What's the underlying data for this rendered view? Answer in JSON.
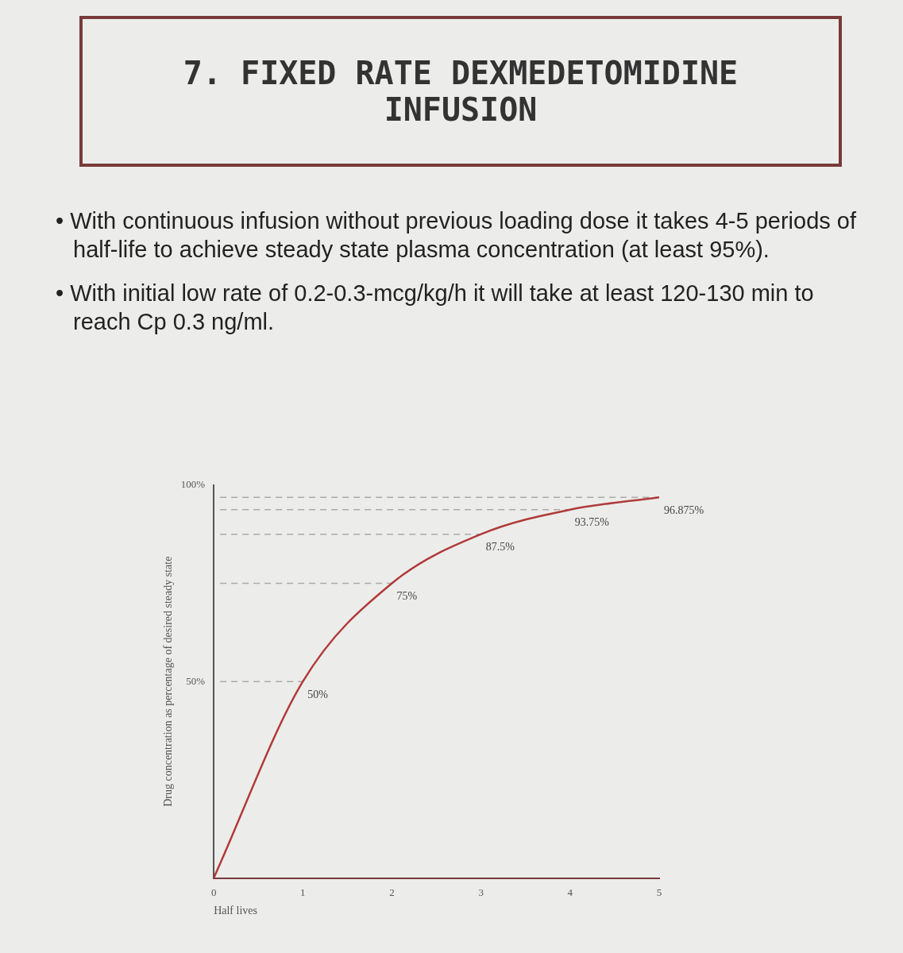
{
  "chart_data": {
    "type": "line",
    "title": "7. FIXED RATE DEXMEDETOMIDINE INFUSION",
    "annotations": [
      "• With continuous infusion without previous loading dose it takes 4-5 periods of half-life to achieve steady state plasma concentration (at least 95%).",
      "• With initial low rate of 0.2-0.3-mcg/kg/h it will take at least 120-130 min to reach Cp 0.3 ng/ml."
    ],
    "xlabel": "Half lives",
    "ylabel": "Drug concentration as percentage of desired steady state",
    "x": [
      0,
      1,
      2,
      3,
      4,
      5
    ],
    "series": [
      {
        "color": "#b03a3a",
        "values": [
          0,
          50,
          75,
          87.5,
          93.75,
          96.875
        ],
        "value_labels": [
          null,
          "50%",
          "75%",
          "87.5%",
          "93.75%",
          "96.875%"
        ]
      }
    ],
    "xlim": [
      0,
      5
    ],
    "xticks": [
      0,
      1,
      2,
      3,
      4,
      5
    ],
    "ylim": [
      0,
      100
    ],
    "yticks": [
      {
        "value": 50,
        "label": "50%"
      },
      {
        "value": 100,
        "label": "100%"
      }
    ],
    "ref_lines": [
      {
        "axis": "y",
        "value": 50,
        "line_style": "dashed",
        "color": "#aaaaaa"
      },
      {
        "axis": "y",
        "value": 75,
        "line_style": "dashed",
        "color": "#aaaaaa"
      },
      {
        "axis": "y",
        "value": 87.5,
        "line_style": "dashed",
        "color": "#aaaaaa"
      },
      {
        "axis": "y",
        "value": 93.75,
        "line_style": "dashed",
        "color": "#aaaaaa"
      },
      {
        "axis": "y",
        "value": 96.875,
        "line_style": "dashed",
        "color": "#aaaaaa"
      }
    ],
    "grid": false,
    "legend": false,
    "marker": "none",
    "line_style": "solid"
  }
}
